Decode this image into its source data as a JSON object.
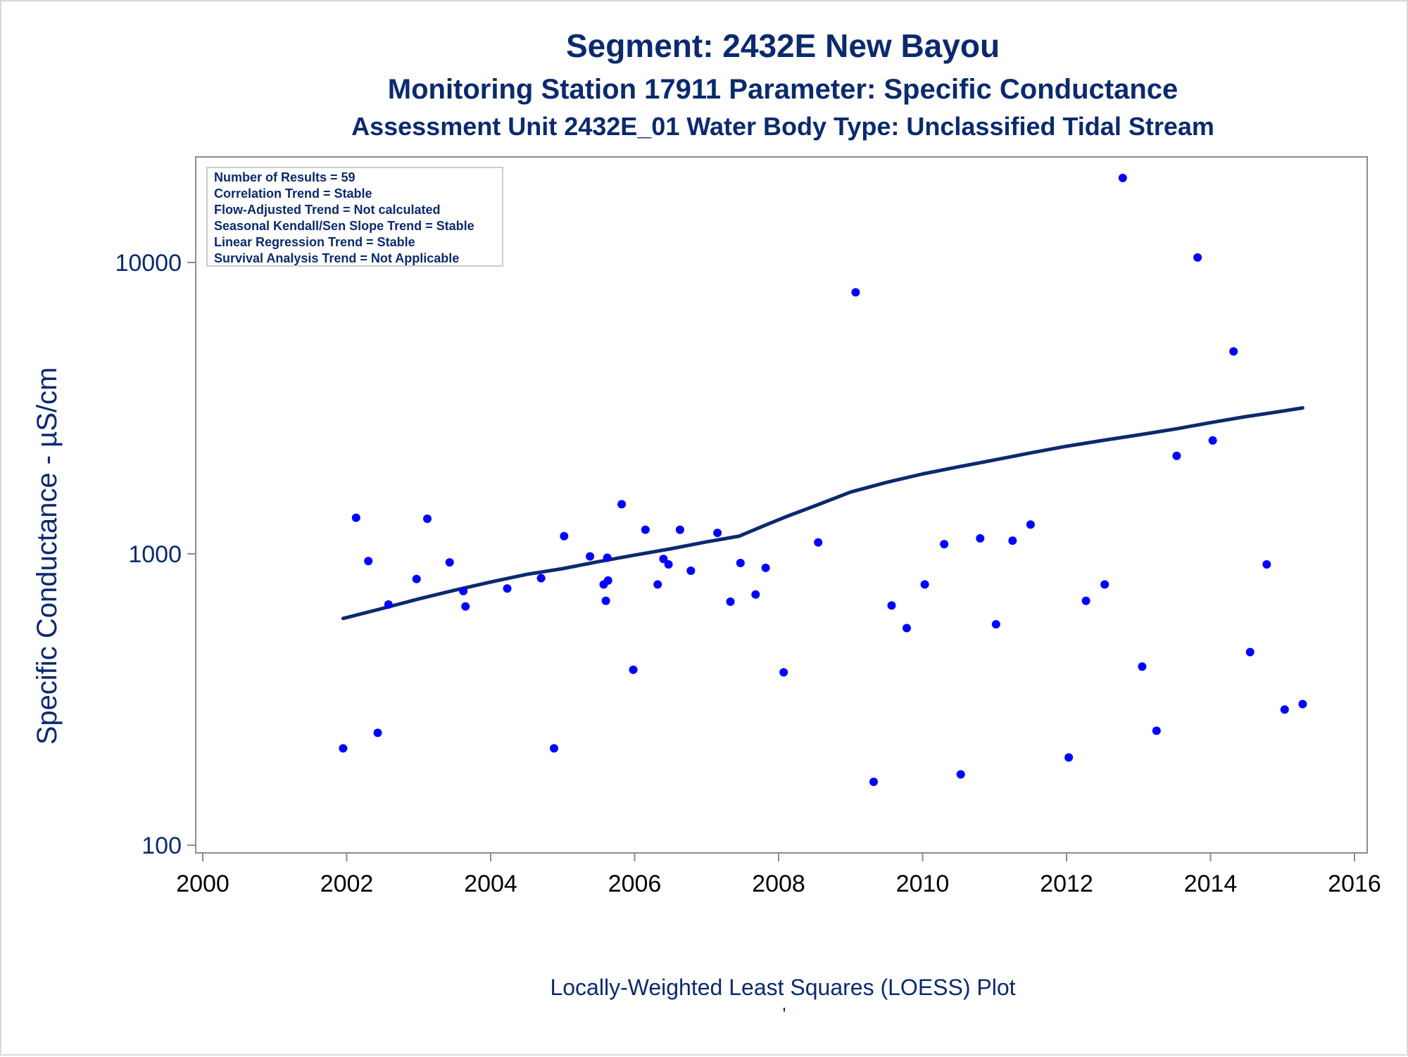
{
  "titles": {
    "line1": "Segment: 2432E  New Bayou",
    "line2": "Monitoring Station 17911 Parameter: Specific Conductance",
    "line3": "Assessment Unit 2432E_01   Water Body Type: Unclassified Tidal Stream"
  },
  "info_box": [
    "Number of Results = 59",
    "Correlation Trend = Stable",
    "Flow-Adjusted Trend = Not calculated",
    "Seasonal Kendall/Sen Slope Trend = Stable",
    "Linear Regression Trend = Stable",
    "Survival Analysis Trend = Not Applicable"
  ],
  "footnote": "Locally-Weighted Least Squares (LOESS) Plot",
  "footnote_mark": "'",
  "colors": {
    "text": "#0b2a6e",
    "points": "#0000ff",
    "loess": "#0b2a6e",
    "axis_x_labels": "#000000",
    "frame": "#8c8c8c"
  },
  "chart_data": {
    "type": "scatter",
    "xlabel": "",
    "ylabel": "Specific Conductance -  µS/cm",
    "xlim": [
      2000,
      2016
    ],
    "ylim": [
      100,
      20000
    ],
    "yscale": "log",
    "x_ticks": [
      2000,
      2002,
      2004,
      2006,
      2008,
      2010,
      2012,
      2014,
      2016
    ],
    "x_tick_labels": [
      "2000",
      "2002",
      "2004",
      "2006",
      "2008",
      "2010",
      "2012",
      "2014",
      "2016"
    ],
    "y_ticks": [
      100,
      1000,
      10000
    ],
    "y_tick_labels": [
      "100",
      "1000",
      "10000"
    ],
    "grid": false,
    "series": [
      {
        "name": "",
        "type": "scatter",
        "points": [
          [
            2001.95,
            215
          ],
          [
            2002.13,
            1330
          ],
          [
            2002.3,
            945
          ],
          [
            2002.43,
            243
          ],
          [
            2002.58,
            670
          ],
          [
            2002.97,
            820
          ],
          [
            2003.12,
            1320
          ],
          [
            2003.43,
            935
          ],
          [
            2003.62,
            745
          ],
          [
            2003.65,
            660
          ],
          [
            2004.23,
            760
          ],
          [
            2004.7,
            825
          ],
          [
            2004.88,
            215
          ],
          [
            2005.02,
            1150
          ],
          [
            2005.38,
            980
          ],
          [
            2005.57,
            785
          ],
          [
            2005.6,
            690
          ],
          [
            2005.62,
            970
          ],
          [
            2005.63,
            810
          ],
          [
            2005.82,
            1480
          ],
          [
            2005.98,
            400
          ],
          [
            2006.15,
            1210
          ],
          [
            2006.32,
            785
          ],
          [
            2006.4,
            960
          ],
          [
            2006.47,
            920
          ],
          [
            2006.63,
            1210
          ],
          [
            2006.78,
            875
          ],
          [
            2007.15,
            1180
          ],
          [
            2007.33,
            685
          ],
          [
            2007.47,
            930
          ],
          [
            2007.68,
            725
          ],
          [
            2007.82,
            895
          ],
          [
            2008.07,
            392
          ],
          [
            2008.55,
            1095
          ],
          [
            2009.07,
            7900
          ],
          [
            2009.32,
            165
          ],
          [
            2009.57,
            665
          ],
          [
            2009.78,
            556
          ],
          [
            2010.03,
            785
          ],
          [
            2010.3,
            1080
          ],
          [
            2010.53,
            175
          ],
          [
            2010.8,
            1130
          ],
          [
            2011.02,
            573
          ],
          [
            2011.25,
            1110
          ],
          [
            2011.5,
            1260
          ],
          [
            2012.03,
            200
          ],
          [
            2012.27,
            690
          ],
          [
            2012.53,
            785
          ],
          [
            2012.78,
            19500
          ],
          [
            2013.05,
            410
          ],
          [
            2013.25,
            247
          ],
          [
            2013.53,
            2170
          ],
          [
            2013.82,
            10400
          ],
          [
            2014.03,
            2450
          ],
          [
            2014.32,
            4950
          ],
          [
            2014.55,
            460
          ],
          [
            2014.78,
            920
          ],
          [
            2015.03,
            292
          ],
          [
            2015.28,
            305
          ]
        ]
      },
      {
        "name": "",
        "type": "line",
        "points": [
          [
            2001.95,
            600
          ],
          [
            2002.5,
            650
          ],
          [
            2003.0,
            700
          ],
          [
            2003.5,
            750
          ],
          [
            2004.0,
            800
          ],
          [
            2004.5,
            850
          ],
          [
            2005.0,
            890
          ],
          [
            2005.5,
            940
          ],
          [
            2006.0,
            990
          ],
          [
            2006.5,
            1040
          ],
          [
            2007.0,
            1100
          ],
          [
            2007.45,
            1150
          ],
          [
            2007.8,
            1250
          ],
          [
            2008.1,
            1340
          ],
          [
            2008.5,
            1460
          ],
          [
            2009.0,
            1630
          ],
          [
            2009.5,
            1760
          ],
          [
            2010.0,
            1880
          ],
          [
            2010.5,
            1990
          ],
          [
            2011.0,
            2100
          ],
          [
            2011.5,
            2220
          ],
          [
            2012.0,
            2340
          ],
          [
            2012.5,
            2450
          ],
          [
            2013.0,
            2560
          ],
          [
            2013.5,
            2680
          ],
          [
            2014.0,
            2820
          ],
          [
            2014.5,
            2960
          ],
          [
            2015.0,
            3090
          ],
          [
            2015.28,
            3170
          ]
        ]
      }
    ]
  }
}
